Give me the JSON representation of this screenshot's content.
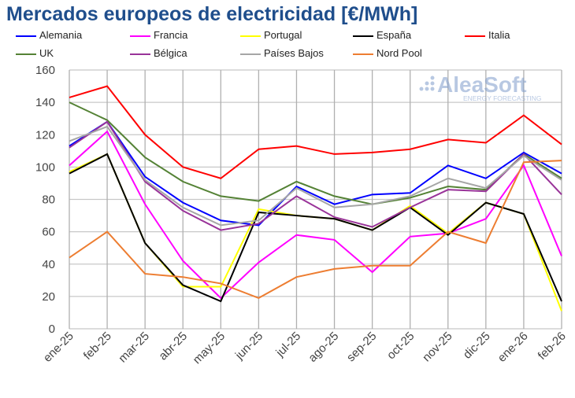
{
  "chart_data": {
    "type": "line",
    "title": "Mercados europeos de electricidad [€/MWh]",
    "categories": [
      "ene-25",
      "feb-25",
      "mar-25",
      "abr-25",
      "may-25",
      "jun-25",
      "jul-25",
      "ago-25",
      "sep-25",
      "oct-25",
      "nov-25",
      "dic-25",
      "ene-26",
      "feb-26"
    ],
    "ylim": [
      0,
      160
    ],
    "yticks": [
      0,
      20,
      40,
      60,
      80,
      100,
      120,
      140,
      160
    ],
    "grid": true,
    "legend": "top",
    "series": [
      {
        "name": "Alemania",
        "color": "#0000ff",
        "values": [
          113,
          128,
          94,
          78,
          67,
          64,
          88,
          77,
          83,
          84,
          101,
          93,
          109,
          96
        ]
      },
      {
        "name": "Francia",
        "color": "#ff00ff",
        "values": [
          101,
          122,
          77,
          42,
          19,
          41,
          58,
          55,
          35,
          57,
          59,
          68,
          101,
          45
        ]
      },
      {
        "name": "Portugal",
        "color": "#ffff00",
        "values": [
          97,
          108,
          53,
          26,
          26,
          74,
          70,
          68,
          61,
          76,
          59,
          78,
          71,
          11
        ]
      },
      {
        "name": "España",
        "color": "#000000",
        "values": [
          96,
          108,
          53,
          27,
          17,
          72,
          70,
          68,
          61,
          75,
          58,
          78,
          71,
          17
        ]
      },
      {
        "name": "Italia",
        "color": "#ff0000",
        "values": [
          143,
          150,
          120,
          100,
          93,
          111,
          113,
          108,
          109,
          111,
          117,
          115,
          132,
          114
        ]
      },
      {
        "name": "UK",
        "color": "#548235",
        "values": [
          140,
          129,
          106,
          91,
          82,
          79,
          91,
          82,
          77,
          81,
          88,
          86,
          108,
          93
        ]
      },
      {
        "name": "Bélgica",
        "color": "#993399",
        "values": [
          112,
          128,
          91,
          73,
          61,
          65,
          82,
          69,
          63,
          75,
          86,
          85,
          108,
          83
        ]
      },
      {
        "name": "Países Bajos",
        "color": "#a6a6a6",
        "values": [
          116,
          125,
          92,
          75,
          64,
          67,
          87,
          75,
          77,
          82,
          93,
          87,
          107,
          92
        ]
      },
      {
        "name": "Nord Pool",
        "color": "#ed7d31",
        "values": [
          44,
          60,
          34,
          32,
          28,
          19,
          32,
          37,
          39,
          39,
          60,
          53,
          103,
          104
        ]
      }
    ]
  },
  "watermark": {
    "brand": "AleaSoft",
    "tagline": "ENERGY FORECASTING"
  }
}
